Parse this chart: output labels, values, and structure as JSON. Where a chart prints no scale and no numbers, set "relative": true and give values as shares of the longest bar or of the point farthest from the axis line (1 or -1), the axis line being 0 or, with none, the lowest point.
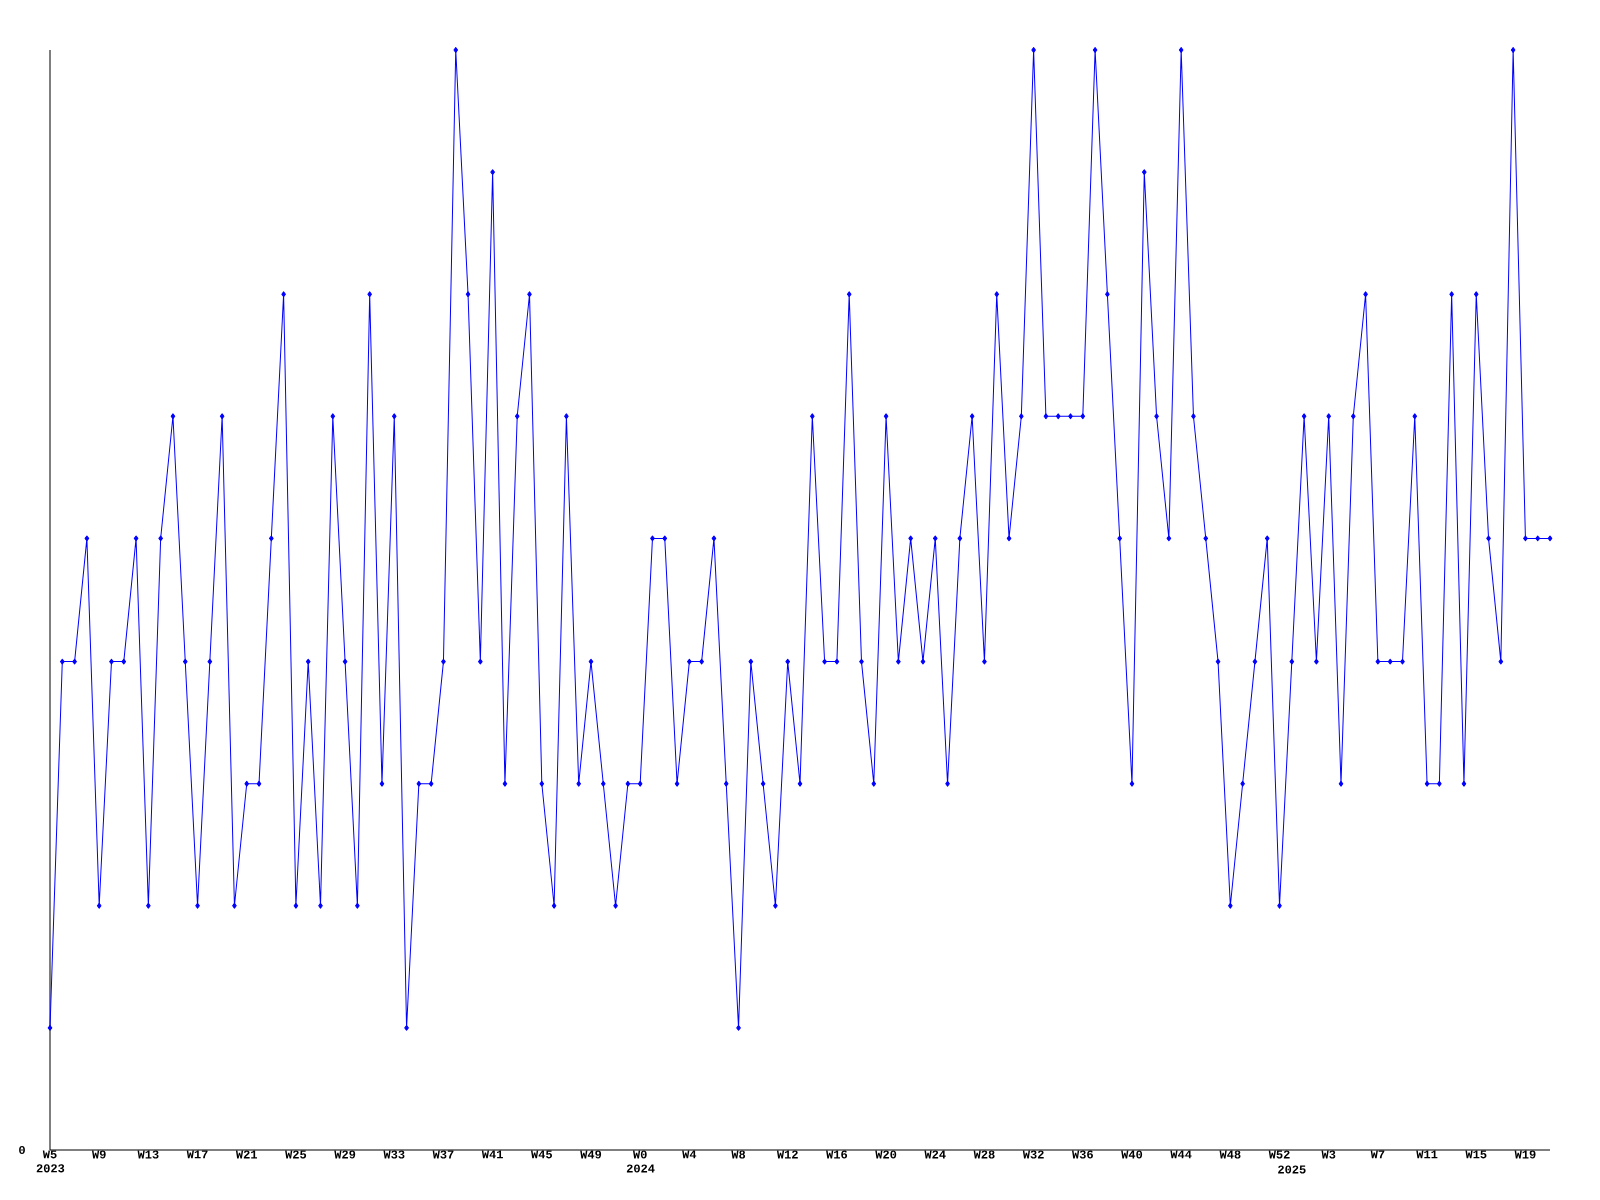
{
  "chart_data": {
    "type": "line",
    "relative": true,
    "color": "#0000ff",
    "marker": "diamond",
    "line_style": "solid",
    "categories": [
      "W5 2023",
      null,
      null,
      null,
      "W9",
      null,
      null,
      null,
      "W13",
      null,
      null,
      null,
      "W17",
      null,
      null,
      null,
      "W21",
      null,
      null,
      null,
      "W25",
      null,
      null,
      null,
      "W29",
      null,
      null,
      null,
      "W33",
      null,
      null,
      null,
      "W37",
      null,
      null,
      null,
      "W41",
      null,
      null,
      null,
      "W45",
      null,
      null,
      null,
      "W49",
      null,
      null,
      null,
      "W0 2024",
      null,
      null,
      null,
      "W4",
      null,
      null,
      null,
      "W8",
      null,
      null,
      null,
      "W12",
      null,
      null,
      null,
      "W16",
      null,
      null,
      null,
      "W20",
      null,
      null,
      null,
      "W24",
      null,
      null,
      null,
      "W28",
      null,
      null,
      null,
      "W32",
      null,
      null,
      null,
      "W36",
      null,
      null,
      null,
      "W40",
      null,
      null,
      null,
      "W44",
      null,
      null,
      null,
      "W48",
      null,
      null,
      null,
      "W52",
      "2025",
      null,
      null,
      "W3",
      null,
      null,
      null,
      "W7",
      null,
      null,
      null,
      "W11",
      null,
      null,
      null,
      "W15",
      null,
      null,
      null,
      "W19",
      null,
      null
    ],
    "values": [
      0.111,
      0.444,
      0.444,
      0.556,
      0.222,
      0.444,
      0.444,
      0.556,
      0.222,
      0.556,
      0.667,
      0.444,
      0.222,
      0.444,
      0.667,
      0.222,
      0.333,
      0.333,
      0.556,
      0.778,
      0.222,
      0.444,
      0.222,
      0.667,
      0.444,
      0.222,
      0.778,
      0.333,
      0.667,
      0.111,
      0.333,
      0.333,
      0.444,
      1,
      0.778,
      0.444,
      0.889,
      0.333,
      0.667,
      0.778,
      0.333,
      0.222,
      0.667,
      0.333,
      0.444,
      0.333,
      0.222,
      0.333,
      0.333,
      0.556,
      0.556,
      0.333,
      0.444,
      0.444,
      0.556,
      0.333,
      0.111,
      0.444,
      0.333,
      0.222,
      0.444,
      0.333,
      0.667,
      0.444,
      0.444,
      0.778,
      0.444,
      0.333,
      0.667,
      0.444,
      0.556,
      0.444,
      0.556,
      0.333,
      0.556,
      0.667,
      0.444,
      0.778,
      0.556,
      0.667,
      1,
      0.667,
      0.667,
      0.667,
      0.667,
      1,
      0.778,
      0.556,
      0.333,
      0.889,
      0.667,
      0.556,
      1,
      0.667,
      0.556,
      0.444,
      0.222,
      0.333,
      0.444,
      0.556,
      0.222,
      0.444,
      0.667,
      0.444,
      0.667,
      0.333,
      0.667,
      0.778,
      0.444,
      0.444,
      0.444,
      0.667,
      0.333,
      0.333,
      0.778,
      0.333,
      0.778,
      0.556,
      0.444,
      1,
      0.556,
      0.556,
      0.556
    ],
    "annotations": [
      "0"
    ]
  }
}
